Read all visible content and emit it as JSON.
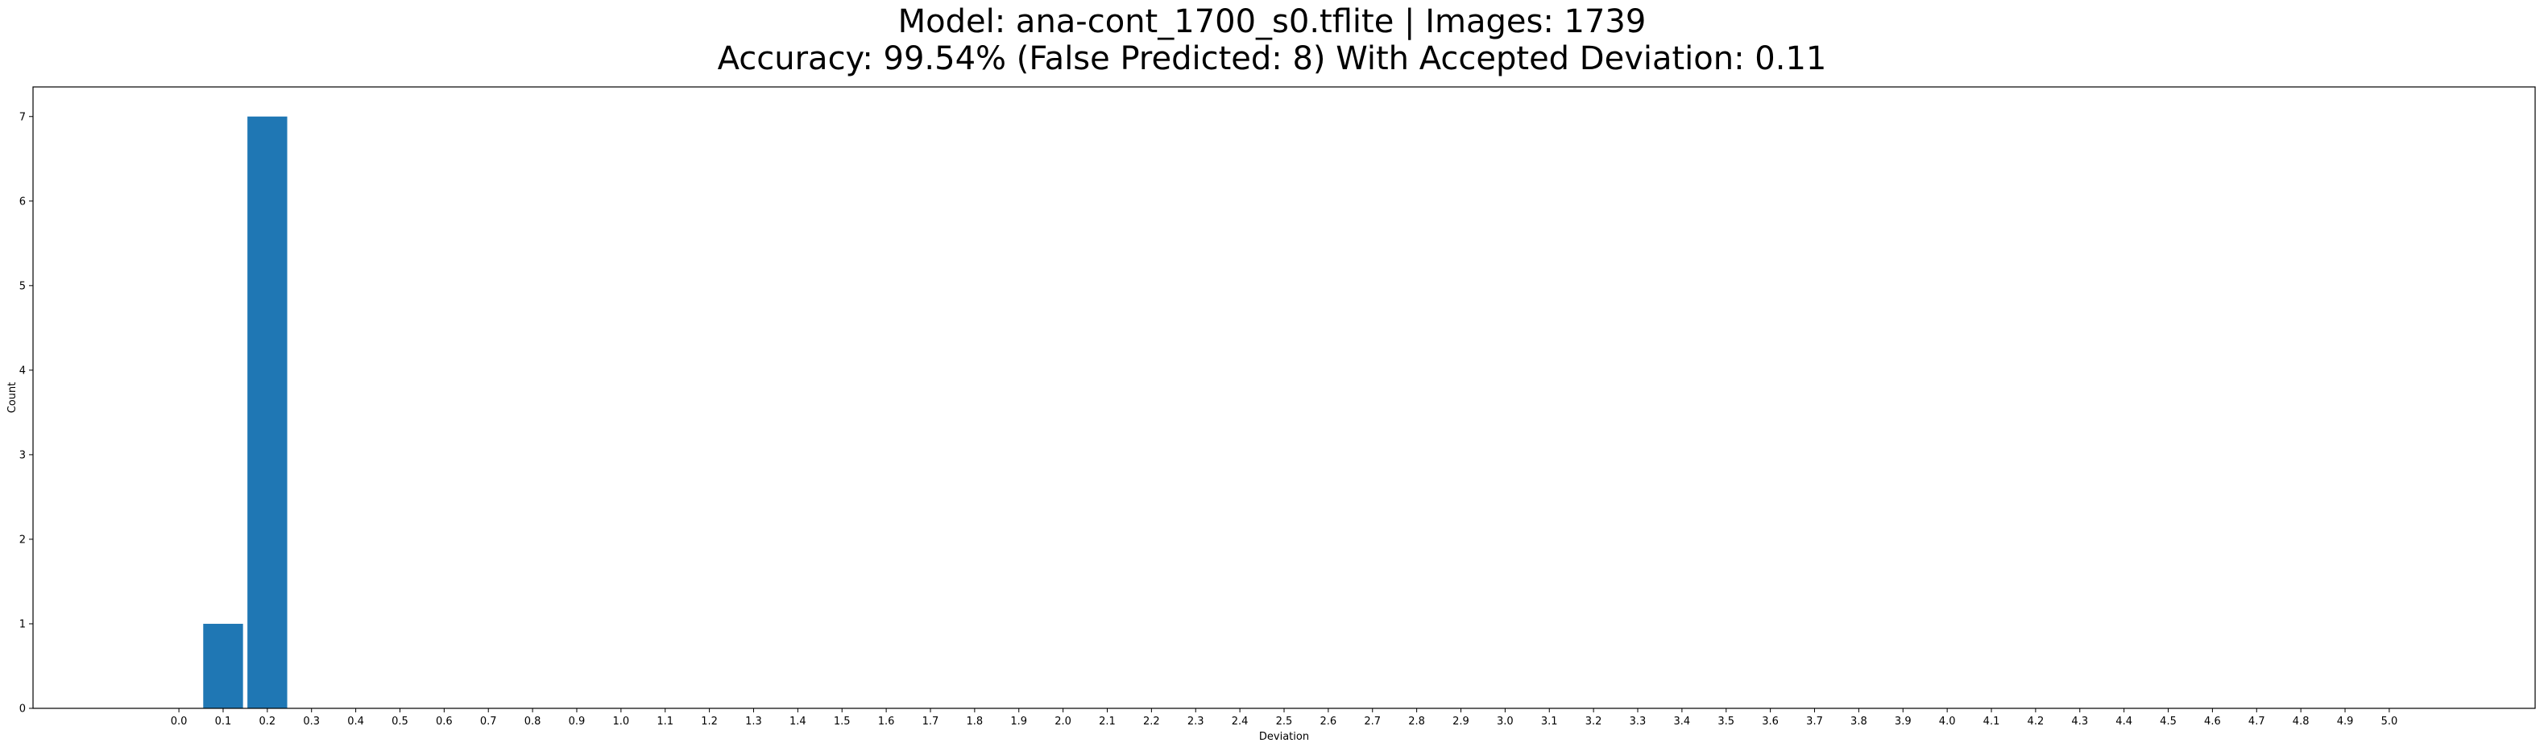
{
  "chart_data": {
    "type": "bar",
    "title": "Model: ana-cont_1700_s0.tflite  |  Images: 1739",
    "subtitle": "Accuracy: 99.54% (False Predicted: 8) With Accepted Deviation: 0.11",
    "xlabel": "Deviation",
    "ylabel": "Count",
    "categories": [
      "0.0",
      "0.1",
      "0.2",
      "0.3",
      "0.4",
      "0.5",
      "0.6",
      "0.7",
      "0.8",
      "0.9",
      "1.0",
      "1.1",
      "1.2",
      "1.3",
      "1.4",
      "1.5",
      "1.6",
      "1.7",
      "1.8",
      "1.9",
      "2.0",
      "2.1",
      "2.2",
      "2.3",
      "2.4",
      "2.5",
      "2.6",
      "2.7",
      "2.8",
      "2.9",
      "3.0",
      "3.1",
      "3.2",
      "3.3",
      "3.4",
      "3.5",
      "3.6",
      "3.7",
      "3.8",
      "3.9",
      "4.0",
      "4.1",
      "4.2",
      "4.3",
      "4.4",
      "4.5",
      "4.6",
      "4.7",
      "4.8",
      "4.9",
      "5.0"
    ],
    "bars": [
      {
        "x": 0.1,
        "value": 1
      },
      {
        "x": 0.2,
        "value": 7
      }
    ],
    "bar_width": 0.09,
    "xlim": [
      -0.33,
      5.33
    ],
    "ylim": [
      0,
      7.35
    ],
    "yticks": [
      0,
      1,
      2,
      3,
      4,
      5,
      6,
      7
    ],
    "bar_color": "#1f77b4",
    "grid": false,
    "legend": "none"
  }
}
